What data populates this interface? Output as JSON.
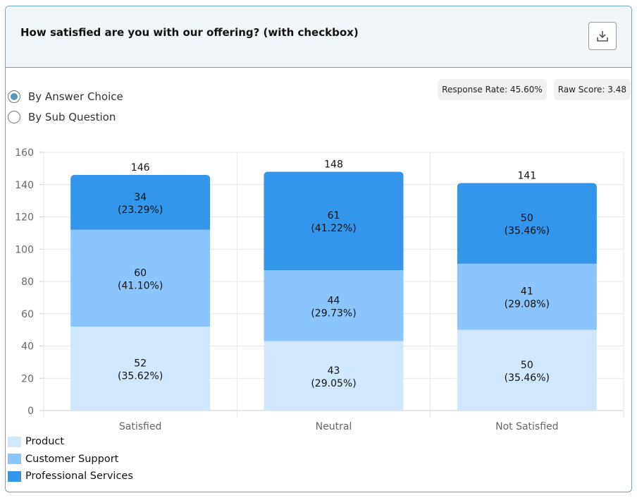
{
  "header": {
    "title": "How satisfied are you with our offering? (with checkbox)",
    "download_icon": "download-icon"
  },
  "view_options": [
    {
      "label": "By Answer Choice",
      "selected": true
    },
    {
      "label": "By Sub Question",
      "selected": false
    }
  ],
  "badges": {
    "response_rate": "Response Rate: 45.60%",
    "raw_score": "Raw Score: 3.48"
  },
  "chart_data": {
    "type": "bar",
    "stacked": true,
    "categories": [
      "Satisfied",
      "Neutral",
      "Not Satisfied"
    ],
    "series": [
      {
        "name": "Product",
        "color": "#d1e7fd",
        "values": [
          52,
          43,
          50
        ],
        "labels": [
          "(35.62%)",
          "(29.05%)",
          "(35.46%)"
        ]
      },
      {
        "name": "Customer Support",
        "color": "#8ac6fd",
        "values": [
          60,
          44,
          41
        ],
        "labels": [
          "(41.10%)",
          "(29.73%)",
          "(29.08%)"
        ]
      },
      {
        "name": "Professional Services",
        "color": "#3396ea",
        "values": [
          34,
          61,
          50
        ],
        "labels": [
          "(23.29%)",
          "(41.22%)",
          "(35.46%)"
        ]
      }
    ],
    "totals": [
      146,
      148,
      141
    ],
    "ylim": [
      0,
      160
    ],
    "yticks": [
      0,
      20,
      40,
      60,
      80,
      100,
      120,
      140,
      160
    ],
    "grid": true,
    "legend": "bottom-left"
  }
}
